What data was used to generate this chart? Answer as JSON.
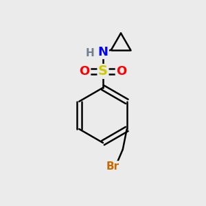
{
  "background_color": "#ebebeb",
  "atom_colors": {
    "C": "#000000",
    "H": "#708090",
    "N": "#0000ff",
    "O": "#ff0000",
    "S": "#cccc00",
    "Br": "#cc6600"
  },
  "bond_color": "#000000",
  "bond_width": 1.8,
  "font_size_large": 13,
  "font_size_med": 11,
  "font_size_small": 10
}
